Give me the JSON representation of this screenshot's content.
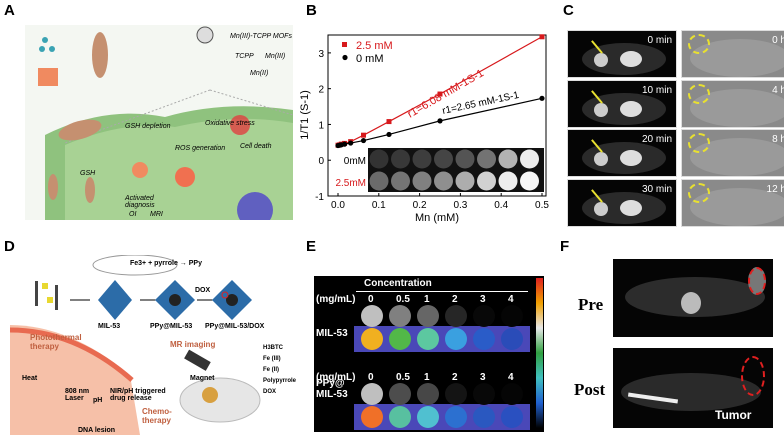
{
  "panels": {
    "a": "A",
    "b": "B",
    "c": "C",
    "d": "D",
    "e": "E",
    "f": "F"
  },
  "panel_a": {
    "legend": [
      "Mn(III)-TCPP MOFs",
      "TCPP",
      "Mn(III)",
      "Mn(II)"
    ],
    "labels": [
      "GSH depletion",
      "Oxidative stress",
      "Cell death",
      "ROS generation",
      "GSH",
      "Activated diagnosis",
      "OI",
      "MRI"
    ]
  },
  "chart_data": {
    "type": "scatter",
    "xlabel": "Mn (mM)",
    "ylabel": "1/T1 (S-1)",
    "xlim": [
      -0.02,
      0.52
    ],
    "ylim": [
      -1,
      3.5
    ],
    "xticks": [
      "0.0",
      "0.1",
      "0.2",
      "0.3",
      "0.4",
      "0.5"
    ],
    "yticks": [
      "-1",
      "0",
      "1",
      "2",
      "3"
    ],
    "legend_position": "top-left",
    "series": [
      {
        "name": "2.5 mM",
        "color": "#d7191c",
        "marker": "square",
        "x": [
          0,
          0.004,
          0.008,
          0.016,
          0.031,
          0.0625,
          0.125,
          0.25,
          0.5
        ],
        "y": [
          0.42,
          0.43,
          0.45,
          0.47,
          0.52,
          0.7,
          1.08,
          1.85,
          3.45
        ],
        "annotation": "r1=6.08 mM-1S-1"
      },
      {
        "name": "0 mM",
        "color": "#000000",
        "marker": "circle",
        "x": [
          0,
          0.004,
          0.008,
          0.016,
          0.031,
          0.0625,
          0.125,
          0.25,
          0.5
        ],
        "y": [
          0.41,
          0.42,
          0.43,
          0.45,
          0.48,
          0.55,
          0.72,
          1.1,
          1.73
        ],
        "annotation": "r1=2.65 mM-1S-1"
      }
    ],
    "inset": {
      "rows": [
        "0mM",
        "2.5mM"
      ],
      "brightness_0mM": [
        0.2,
        0.22,
        0.24,
        0.27,
        0.33,
        0.45,
        0.7,
        0.93
      ],
      "brightness_2_5mM": [
        0.42,
        0.46,
        0.5,
        0.56,
        0.68,
        0.82,
        0.93,
        0.97
      ]
    }
  },
  "panel_c": {
    "left": [
      "0 min",
      "10 min",
      "20 min",
      "30 min"
    ],
    "right": [
      "0 h",
      "4 h",
      "8 h",
      "12 h"
    ]
  },
  "panel_d": {
    "products": [
      "MIL-53",
      "PPy@MIL-53",
      "PPy@MIL-53/DOX"
    ],
    "arrow": "DOX",
    "legend": [
      "H3BTC",
      "Fe (III)",
      "Fe (II)",
      "Polypyrrole",
      "DOX"
    ],
    "labels": [
      "Photothermal therapy",
      "Heat",
      "808 nm Laser",
      "pH",
      "NIR/pH triggered drug release",
      "DNA lesion",
      "Chemo-therapy",
      "MR imaging",
      "Magnet"
    ],
    "reaction": "Fe3+ + pyrrole → PPy"
  },
  "panel_e": {
    "title": "Concentration",
    "unit": "(mg/mL)",
    "concentrations": [
      "0",
      "0.5",
      "1",
      "2",
      "3",
      "4"
    ],
    "samples": [
      "MIL-53",
      "PPy@ MIL-53"
    ],
    "gray_mil": [
      0.75,
      0.5,
      0.4,
      0.15,
      0.03,
      0.02
    ],
    "gray_ppy": [
      0.75,
      0.3,
      0.28,
      0.08,
      0.03,
      0.02
    ],
    "color_mil": [
      "#f0b020",
      "#52b848",
      "#5cc8a0",
      "#3aa0e0",
      "#2a5cc8",
      "#2a4cb8"
    ],
    "color_ppy": [
      "#f07028",
      "#58c0a0",
      "#50c0d0",
      "#2c70d0",
      "#2a58c0",
      "#2a50c0"
    ]
  },
  "panel_f": {
    "rows": [
      "Pre",
      "Post"
    ],
    "annotation": "Tumor"
  }
}
